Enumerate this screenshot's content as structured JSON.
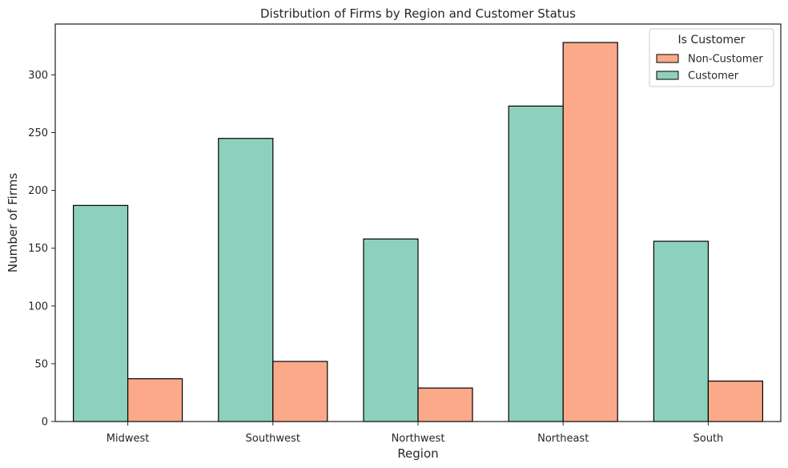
{
  "chart_data": {
    "type": "bar",
    "title": "Distribution of Firms by Region and Customer Status",
    "xlabel": "Region",
    "ylabel": "Number of Firms",
    "categories": [
      "Midwest",
      "Southwest",
      "Northwest",
      "Northeast",
      "South"
    ],
    "series": [
      {
        "name": "Customer",
        "values": [
          187,
          245,
          158,
          273,
          156
        ],
        "color": "#8dd1bc"
      },
      {
        "name": "Non-Customer",
        "values": [
          37,
          52,
          29,
          328,
          35
        ],
        "color": "#fca98a"
      }
    ],
    "yticks": [
      0,
      50,
      100,
      150,
      200,
      250,
      300
    ],
    "ylim": [
      0,
      344
    ],
    "grid": false,
    "legend": {
      "title": "Is Customer",
      "placement": "top-right",
      "order": [
        "Non-Customer",
        "Customer"
      ]
    },
    "bar_edge_color": "#000000"
  }
}
